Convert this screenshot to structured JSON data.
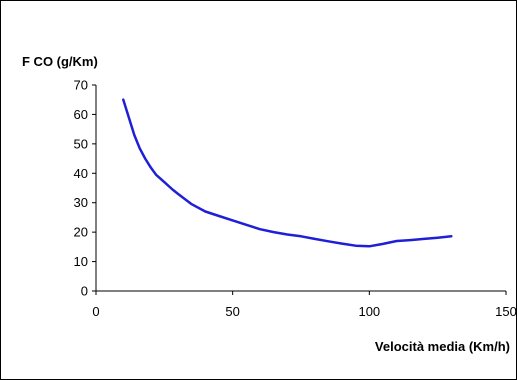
{
  "chart_data": {
    "type": "line",
    "title": "",
    "ylabel": "F CO (g/Km)",
    "xlabel": "Velocità media (Km/h)",
    "xlim": [
      0,
      150
    ],
    "ylim": [
      0,
      70
    ],
    "x_ticks": [
      0,
      50,
      100,
      150
    ],
    "y_ticks": [
      0,
      10,
      20,
      30,
      40,
      50,
      60,
      70
    ],
    "x_tick_labels": [
      "0",
      "50",
      "100",
      "150"
    ],
    "y_tick_labels": [
      "0",
      "10",
      "20",
      "30",
      "40",
      "50",
      "60",
      "70"
    ],
    "grid": false,
    "legend": "none",
    "series": [
      {
        "color": "#1f1fd8",
        "x": [
          10,
          12,
          14,
          16,
          18,
          20,
          22,
          25,
          28,
          30,
          35,
          40,
          45,
          50,
          55,
          60,
          65,
          70,
          75,
          80,
          85,
          90,
          95,
          100,
          105,
          110,
          115,
          120,
          125,
          130
        ],
        "y": [
          65,
          59,
          53,
          48.5,
          45,
          42,
          39.5,
          37,
          34.5,
          33,
          29.5,
          27,
          25.5,
          24,
          22.5,
          21,
          20,
          19.2,
          18.6,
          17.7,
          16.9,
          16.1,
          15.4,
          15.2,
          16,
          17,
          17.3,
          17.7,
          18.1,
          18.6
        ]
      }
    ]
  }
}
